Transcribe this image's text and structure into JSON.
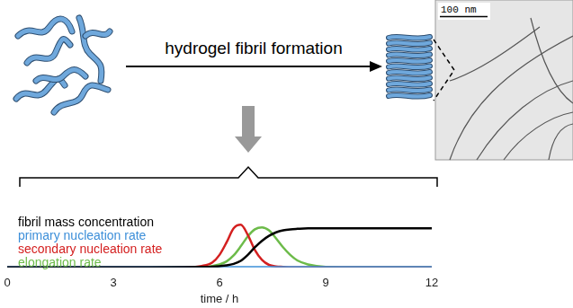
{
  "diagram": {
    "arrow_label": "hydrogel fibril formation",
    "micrograph": {
      "scale_bar": "100 nm"
    }
  },
  "chart_data": {
    "type": "line",
    "xlabel": "time / h",
    "x": [
      0,
      1,
      2,
      3,
      4,
      5,
      5.5,
      5.8,
      6.0,
      6.2,
      6.4,
      6.6,
      6.8,
      7.0,
      7.2,
      7.4,
      7.6,
      7.8,
      8.0,
      8.2,
      8.5,
      9,
      10,
      11,
      12
    ],
    "series": [
      {
        "name": "fibril mass concentration",
        "color": "#000000",
        "values": [
          0,
          0,
          0,
          0,
          0,
          0.005,
          0.01,
          0.015,
          0.025,
          0.04,
          0.07,
          0.13,
          0.25,
          0.4,
          0.53,
          0.63,
          0.7,
          0.74,
          0.76,
          0.77,
          0.78,
          0.78,
          0.78,
          0.78,
          0.78
        ]
      },
      {
        "name": "primary nucleation rate",
        "color": "#3d8fd9",
        "values": [
          0.005,
          0.005,
          0.005,
          0.005,
          0.005,
          0.005,
          0.005,
          0.005,
          0.005,
          0.005,
          0.005,
          0.005,
          0.005,
          0.005,
          0.005,
          0.005,
          0.005,
          0.005,
          0.005,
          0.005,
          0.005,
          0.005,
          0.005,
          0.005,
          0.005
        ]
      },
      {
        "name": "secondary nucleation rate",
        "color": "#d42020",
        "values": [
          0,
          0,
          0,
          0,
          0,
          0.005,
          0.03,
          0.1,
          0.25,
          0.5,
          0.78,
          0.85,
          0.65,
          0.35,
          0.15,
          0.05,
          0.02,
          0.01,
          0,
          0,
          0,
          0,
          0,
          0,
          0
        ]
      },
      {
        "name": "elongation rate",
        "color": "#6dbb4a",
        "values": [
          0,
          0,
          0,
          0,
          0,
          0.005,
          0.01,
          0.03,
          0.06,
          0.12,
          0.24,
          0.42,
          0.62,
          0.76,
          0.8,
          0.74,
          0.58,
          0.4,
          0.25,
          0.14,
          0.06,
          0.01,
          0,
          0,
          0
        ]
      }
    ],
    "xlim": [
      0,
      12
    ],
    "xticks": [
      0,
      3,
      6,
      9,
      12
    ],
    "ylim": [
      0,
      1
    ],
    "tick_labels": "x",
    "grid": false,
    "legend": "upper left"
  }
}
